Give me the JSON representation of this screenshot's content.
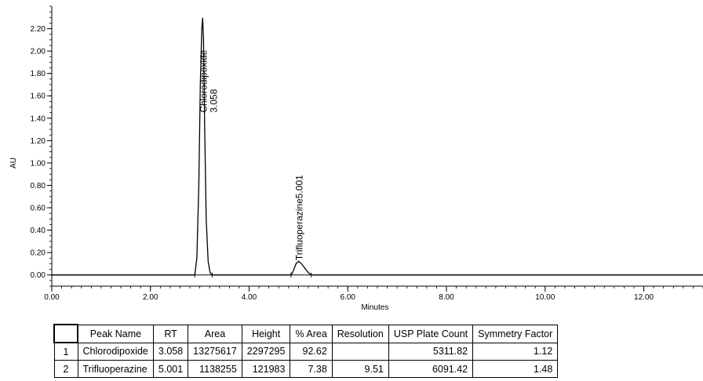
{
  "chart_data": {
    "type": "line",
    "xlabel": "Minutes",
    "ylabel": "AU",
    "xlim": [
      0,
      13.2
    ],
    "ylim": [
      -0.1,
      2.4
    ],
    "x_ticks": [
      "0.00",
      "2.00",
      "4.00",
      "6.00",
      "8.00",
      "10.00",
      "12.00"
    ],
    "y_ticks": [
      "0.00",
      "0.20",
      "0.40",
      "0.60",
      "0.80",
      "1.00",
      "1.20",
      "1.40",
      "1.60",
      "1.80",
      "2.00",
      "2.20"
    ],
    "series": [
      {
        "x": [
          0.0,
          2.9,
          2.94,
          2.98,
          3.01,
          3.04,
          3.058,
          3.075,
          3.1,
          3.13,
          3.17,
          3.21,
          3.25,
          4.85,
          4.9,
          4.95,
          5.001,
          5.06,
          5.13,
          5.2,
          5.26,
          13.2
        ],
        "y": [
          0.0,
          0.0,
          0.15,
          0.8,
          1.7,
          2.2,
          2.297,
          2.1,
          1.3,
          0.5,
          0.12,
          0.02,
          0.0,
          0.0,
          0.04,
          0.1,
          0.122,
          0.1,
          0.06,
          0.02,
          0.0,
          0.0
        ]
      }
    ],
    "annotations": [
      {
        "name": "Chlorodipoxide",
        "rt": "3.058",
        "x": 3.058,
        "y": 2.297
      },
      {
        "name": "Trifluoperazine",
        "rt": "5.001",
        "x": 5.001,
        "y": 0.122
      }
    ]
  },
  "table": {
    "headers": [
      "Peak Name",
      "RT",
      "Area",
      "Height",
      "% Area",
      "Resolution",
      "USP Plate Count",
      "Symmetry Factor"
    ],
    "rows": [
      {
        "index": "1",
        "cells": [
          "Chlorodipoxide",
          "3.058",
          "13275617",
          "2297295",
          "92.62",
          "",
          "5311.82",
          "1.12"
        ]
      },
      {
        "index": "2",
        "cells": [
          "Trifluoperazine",
          "5.001",
          "1138255",
          "121983",
          "7.38",
          "9.51",
          "6091.42",
          "1.48"
        ]
      }
    ]
  }
}
